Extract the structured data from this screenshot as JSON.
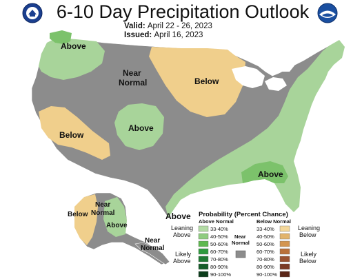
{
  "header": {
    "title": "6-10 Day Precipitation Outlook",
    "valid_label": "Valid:",
    "valid_value": "April 22 - 26, 2023",
    "issued_label": "Issued:",
    "issued_value": "April 16, 2023"
  },
  "logos": {
    "left": "doc-seal-icon",
    "right": "noaa-logo-icon"
  },
  "map": {
    "colors": {
      "near_normal": "#8c8c8c",
      "above_33_40": "#a8d49a",
      "above_40_50": "#7cc26b",
      "below_33_40": "#f0cf8c",
      "water": "#ffffff"
    },
    "region_labels": {
      "above_pnw": "Above",
      "near_normal_west_1": "Near",
      "near_normal_west_2": "Normal",
      "below_midwest": "Below",
      "above_rockies": "Above",
      "below_california": "Below",
      "above_southeast": "Above",
      "above_texas": "Above",
      "below_ak_west": "Below",
      "near_normal_ak_1": "Near",
      "near_normal_ak_2": "Normal",
      "above_ak_se": "Above",
      "near_normal_aleut_1": "Near",
      "near_normal_aleut_2": "Normal"
    }
  },
  "legend": {
    "title": "Probability (Percent Chance)",
    "above_header": "Above Normal",
    "below_header": "Below Normal",
    "near_header_1": "Near",
    "near_header_2": "Normal",
    "leaning_above_1": "Leaning",
    "leaning_above_2": "Above",
    "likely_above_1": "Likely",
    "likely_above_2": "Above",
    "leaning_below_1": "Leaning",
    "leaning_below_2": "Below",
    "likely_below_1": "Likely",
    "likely_below_2": "Below",
    "bins": [
      "33-40%",
      "40-50%",
      "50-60%",
      "60-70%",
      "70-80%",
      "80-90%",
      "90-100%"
    ],
    "above_colors": [
      "#b3dba5",
      "#8fcc80",
      "#5db84e",
      "#2e9a3e",
      "#1f7a33",
      "#155c29",
      "#0c3d1b"
    ],
    "below_colors": [
      "#f3d79a",
      "#e2b46c",
      "#d39550",
      "#b9713a",
      "#9a5230",
      "#7a3a24",
      "#5a2618"
    ],
    "near_color": "#8c8c8c"
  }
}
